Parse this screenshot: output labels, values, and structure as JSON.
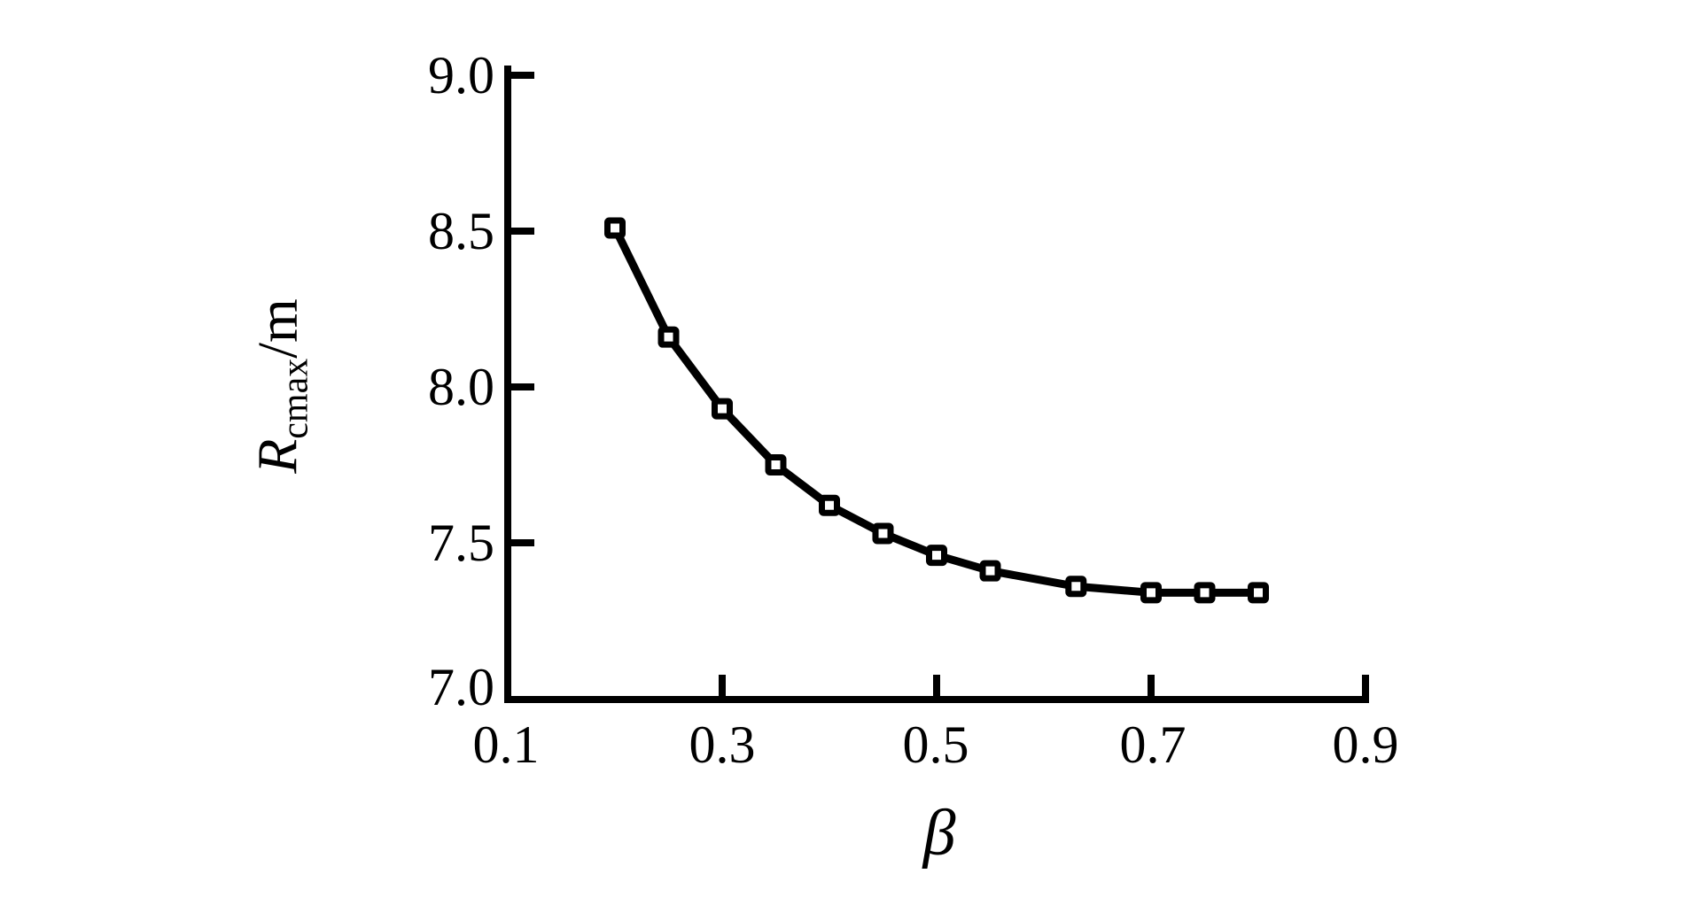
{
  "figure": {
    "background": "#ffffff",
    "ink": "#000000"
  },
  "chart_data": {
    "type": "line",
    "title": "",
    "xlabel": "β",
    "ylabel": "R_cmax/m",
    "ylabel_parts": {
      "symbol": "R",
      "subscript": "cmax",
      "unit": "/m"
    },
    "x": [
      0.2,
      0.25,
      0.3,
      0.35,
      0.4,
      0.45,
      0.5,
      0.55,
      0.63,
      0.7,
      0.75,
      0.8
    ],
    "y": [
      8.51,
      8.16,
      7.93,
      7.75,
      7.62,
      7.53,
      7.46,
      7.41,
      7.36,
      7.34,
      7.34,
      7.34
    ],
    "xlim": [
      0.1,
      0.9
    ],
    "ylim": [
      7.0,
      9.0
    ],
    "x_ticks": [
      0.1,
      0.3,
      0.5,
      0.7,
      0.9
    ],
    "x_tick_labels": [
      "0.1",
      "0.3",
      "0.5",
      "0.7",
      "0.9"
    ],
    "y_ticks": [
      9.0,
      8.5,
      8.0,
      7.5,
      7.0
    ],
    "y_tick_labels": [
      "9.0",
      "8.5",
      "8.0",
      "7.5",
      "7.0"
    ],
    "marker": "open-square",
    "line_color": "#000000",
    "marker_fill": "#ffffff",
    "grid": false,
    "legend": null
  }
}
